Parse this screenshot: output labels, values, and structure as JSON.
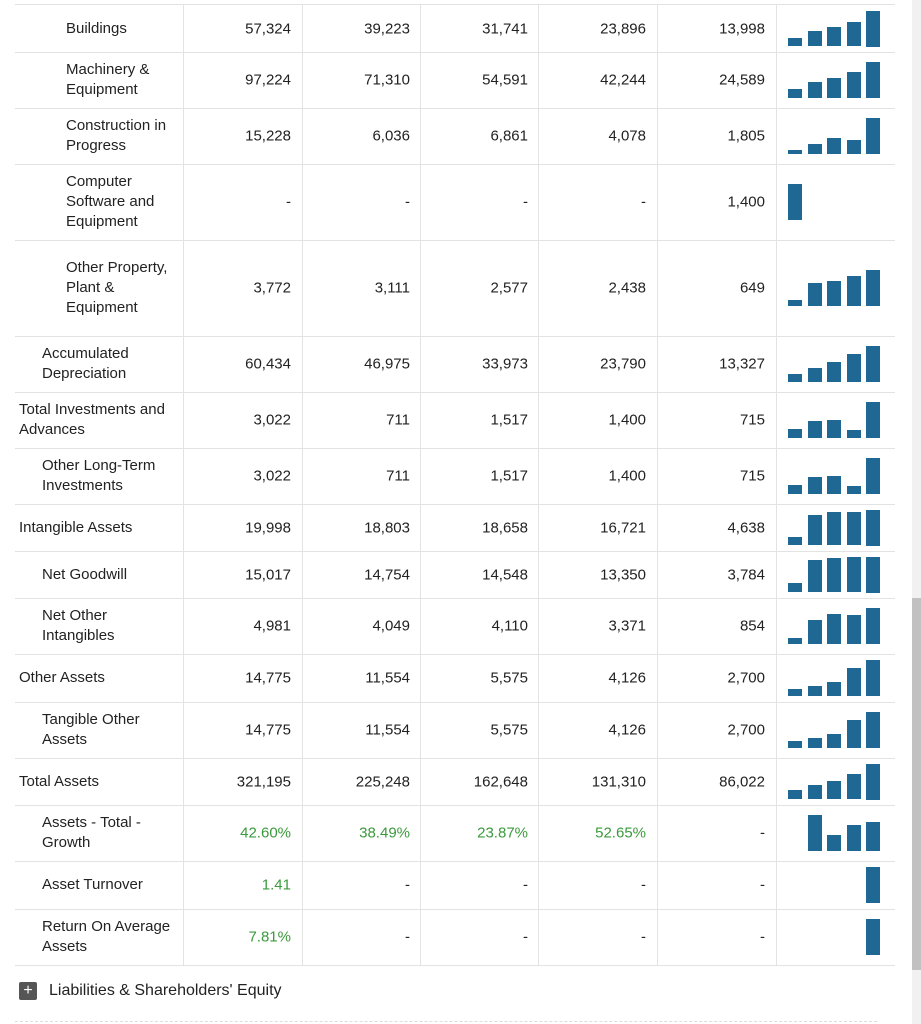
{
  "table": {
    "rows": [
      {
        "label": "Buildings",
        "values": [
          "57,324",
          "39,223",
          "31,741",
          "23,896",
          "13,998"
        ]
      },
      {
        "label": "Machinery & Equipment",
        "values": [
          "97,224",
          "71,310",
          "54,591",
          "42,244",
          "24,589"
        ]
      },
      {
        "label": "Construction in Progress",
        "values": [
          "15,228",
          "6,036",
          "6,861",
          "4,078",
          "1,805"
        ]
      },
      {
        "label": "Computer Software and Equipment",
        "values": [
          "-",
          "-",
          "-",
          "-",
          "1,400"
        ]
      },
      {
        "label": "Other Property, Plant & Equipment",
        "values": [
          "3,772",
          "3,111",
          "2,577",
          "2,438",
          "649"
        ]
      },
      {
        "label": "Accumulated Depreciation",
        "values": [
          "60,434",
          "46,975",
          "33,973",
          "23,790",
          "13,327"
        ]
      },
      {
        "label": "Total Investments and Advances",
        "values": [
          "3,022",
          "711",
          "1,517",
          "1,400",
          "715"
        ]
      },
      {
        "label": "Other Long-Term Investments",
        "values": [
          "3,022",
          "711",
          "1,517",
          "1,400",
          "715"
        ]
      },
      {
        "label": "Intangible Assets",
        "values": [
          "19,998",
          "18,803",
          "18,658",
          "16,721",
          "4,638"
        ]
      },
      {
        "label": "Net Goodwill",
        "values": [
          "15,017",
          "14,754",
          "14,548",
          "13,350",
          "3,784"
        ]
      },
      {
        "label": "Net Other Intangibles",
        "values": [
          "4,981",
          "4,049",
          "4,110",
          "3,371",
          "854"
        ]
      },
      {
        "label": "Other Assets",
        "values": [
          "14,775",
          "11,554",
          "5,575",
          "4,126",
          "2,700"
        ]
      },
      {
        "label": "Tangible Other Assets",
        "values": [
          "14,775",
          "11,554",
          "5,575",
          "4,126",
          "2,700"
        ]
      },
      {
        "label": "Total Assets",
        "values": [
          "321,195",
          "225,248",
          "162,648",
          "131,310",
          "86,022"
        ]
      },
      {
        "label": "Assets - Total - Growth",
        "values": [
          "42.60%",
          "38.49%",
          "23.87%",
          "52.65%",
          "-"
        ]
      },
      {
        "label": "Asset Turnover",
        "values": [
          "1.41",
          "-",
          "-",
          "-",
          "-"
        ]
      },
      {
        "label": "Return On Average Assets",
        "values": [
          "7.81%",
          "-",
          "-",
          "-",
          "-"
        ]
      }
    ]
  },
  "footer": {
    "section": "Liabilities & Shareholders' Equity"
  }
}
